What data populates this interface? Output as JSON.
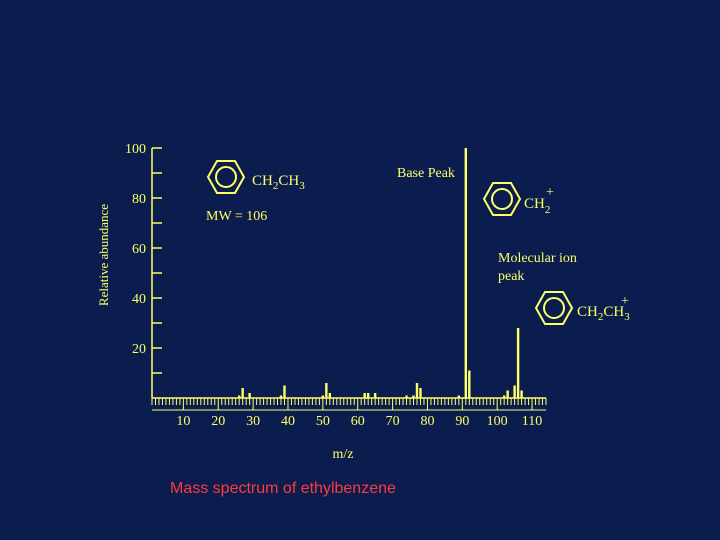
{
  "colors": {
    "background": "#0b1d4f",
    "ink": "#ffff66",
    "caption": "#ff3b3b"
  },
  "caption": "Mass spectrum of ethylbenzene",
  "chart_data": {
    "type": "bar",
    "title": "",
    "xlabel": "m/z",
    "ylabel": "Relative abundance",
    "xlim": [
      1,
      114
    ],
    "ylim": [
      0,
      100
    ],
    "x_ticks": [
      10,
      20,
      30,
      40,
      50,
      60,
      70,
      80,
      90,
      100,
      110
    ],
    "y_ticks": [
      20,
      40,
      60,
      80,
      100
    ],
    "x": [
      26,
      27,
      29,
      38,
      39,
      50,
      51,
      52,
      62,
      63,
      65,
      74,
      76,
      77,
      78,
      89,
      91,
      92,
      102,
      103,
      105,
      106,
      107
    ],
    "values": [
      1,
      4,
      2,
      1,
      5,
      1,
      6,
      2,
      2,
      2,
      2,
      1,
      1,
      6,
      4,
      1,
      100,
      11,
      1,
      3,
      5,
      28,
      3
    ],
    "annotations": {
      "base_peak": "Base Peak",
      "molecular_ion": [
        "Molecular  ion",
        "peak"
      ],
      "mw": "MW = 106",
      "structures": {
        "ethylbenzene": {
          "sub1": "CH",
          "sub1_index": "2",
          "sub2": "CH",
          "sub2_index": "3"
        },
        "benzyl_cation": {
          "group": "CH",
          "group_index": "2",
          "charge": "+"
        },
        "molecular_ion": {
          "sub1": "CH",
          "sub1_index": "2",
          "sub2": "CH",
          "sub2_index": "3",
          "charge": "+"
        }
      }
    }
  }
}
